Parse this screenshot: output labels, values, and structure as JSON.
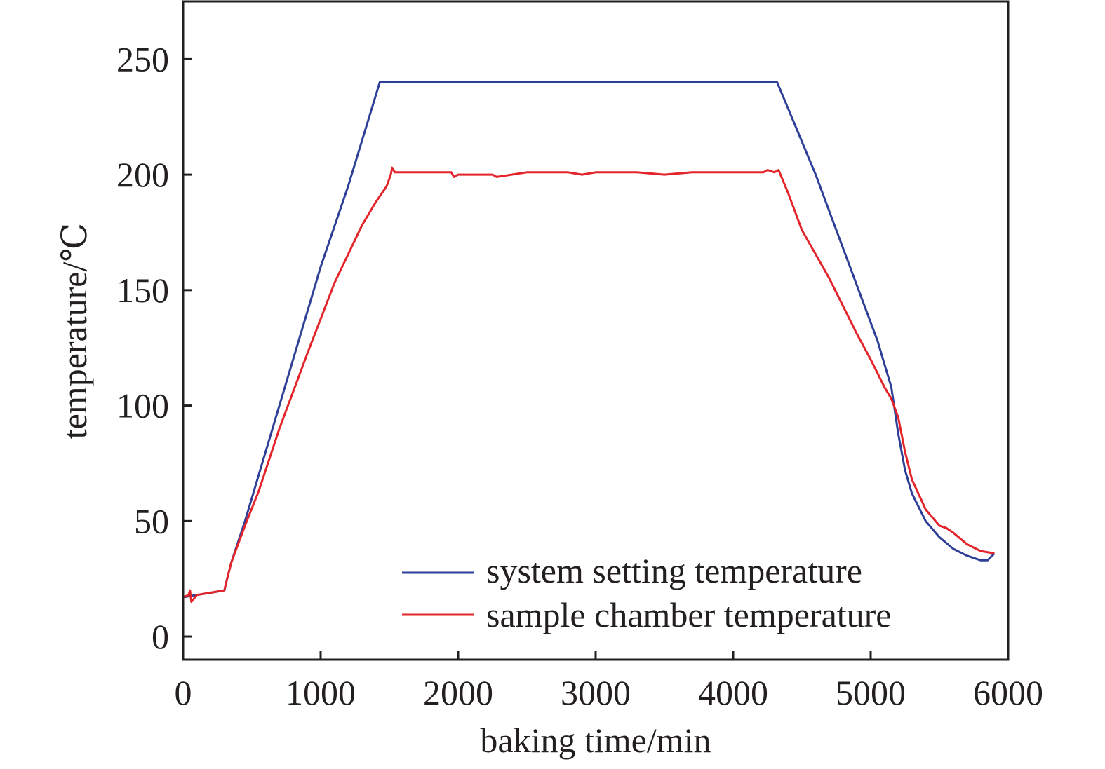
{
  "chart_data": {
    "type": "line",
    "title": "",
    "xlabel": "baking time/min",
    "ylabel": "temperature/℃",
    "xlim": [
      0,
      6000
    ],
    "ylim": [
      -10,
      275
    ],
    "xticks": [
      0,
      1000,
      2000,
      3000,
      4000,
      5000,
      6000
    ],
    "yticks": [
      0,
      50,
      100,
      150,
      200,
      250
    ],
    "xtick_labels": [
      "0",
      "1000",
      "2000",
      "3000",
      "4000",
      "5000",
      "6000"
    ],
    "ytick_labels": [
      "0",
      "50",
      "100",
      "150",
      "200",
      "250"
    ],
    "grid": false,
    "legend_position": "bottom-right",
    "series": [
      {
        "name": "system setting temperature",
        "color": "#2e3f98",
        "points": [
          [
            0,
            17
          ],
          [
            100,
            18
          ],
          [
            200,
            19
          ],
          [
            300,
            20
          ],
          [
            320,
            25
          ],
          [
            350,
            32
          ],
          [
            450,
            50
          ],
          [
            600,
            80
          ],
          [
            800,
            120
          ],
          [
            1000,
            160
          ],
          [
            1200,
            195
          ],
          [
            1430,
            240
          ],
          [
            1500,
            240
          ],
          [
            2000,
            240
          ],
          [
            2500,
            240
          ],
          [
            3000,
            240
          ],
          [
            3500,
            240
          ],
          [
            4000,
            240
          ],
          [
            4320,
            240
          ],
          [
            4600,
            200
          ],
          [
            4850,
            160
          ],
          [
            5050,
            128
          ],
          [
            5150,
            108
          ],
          [
            5200,
            88
          ],
          [
            5250,
            72
          ],
          [
            5300,
            62
          ],
          [
            5400,
            50
          ],
          [
            5500,
            43
          ],
          [
            5600,
            38
          ],
          [
            5700,
            35
          ],
          [
            5800,
            33
          ],
          [
            5850,
            33
          ],
          [
            5900,
            36
          ]
        ]
      },
      {
        "name": "sample chamber temperature",
        "color": "#e3242b",
        "points": [
          [
            0,
            17
          ],
          [
            40,
            18
          ],
          [
            50,
            20
          ],
          [
            60,
            15
          ],
          [
            100,
            18
          ],
          [
            200,
            19
          ],
          [
            300,
            20
          ],
          [
            320,
            25
          ],
          [
            350,
            32
          ],
          [
            450,
            48
          ],
          [
            550,
            63
          ],
          [
            700,
            90
          ],
          [
            900,
            122
          ],
          [
            1100,
            153
          ],
          [
            1300,
            178
          ],
          [
            1400,
            188
          ],
          [
            1480,
            195
          ],
          [
            1510,
            200
          ],
          [
            1520,
            203
          ],
          [
            1540,
            201
          ],
          [
            1800,
            201
          ],
          [
            1950,
            201
          ],
          [
            1970,
            199
          ],
          [
            2000,
            200
          ],
          [
            2250,
            200
          ],
          [
            2280,
            199
          ],
          [
            2500,
            201
          ],
          [
            2800,
            201
          ],
          [
            2900,
            200
          ],
          [
            3000,
            201
          ],
          [
            3300,
            201
          ],
          [
            3500,
            200
          ],
          [
            3700,
            201
          ],
          [
            4000,
            201
          ],
          [
            4220,
            201
          ],
          [
            4250,
            202
          ],
          [
            4300,
            201
          ],
          [
            4330,
            202
          ],
          [
            4400,
            192
          ],
          [
            4500,
            176
          ],
          [
            4700,
            155
          ],
          [
            4900,
            131
          ],
          [
            5000,
            120
          ],
          [
            5100,
            108
          ],
          [
            5150,
            103
          ],
          [
            5200,
            95
          ],
          [
            5250,
            80
          ],
          [
            5300,
            68
          ],
          [
            5400,
            55
          ],
          [
            5500,
            48
          ],
          [
            5550,
            47
          ],
          [
            5600,
            45
          ],
          [
            5700,
            40
          ],
          [
            5800,
            37
          ],
          [
            5900,
            36
          ]
        ]
      }
    ]
  }
}
